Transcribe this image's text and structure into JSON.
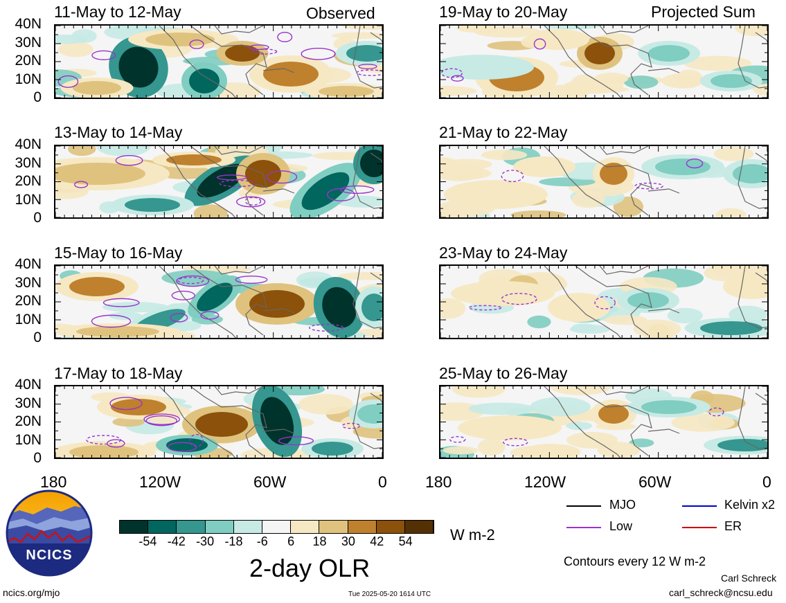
{
  "colors": {
    "bins": [
      "#00332b",
      "#01665e",
      "#35978f",
      "#80cdc1",
      "#c7eae5",
      "#f5f5f5",
      "#f6e8c3",
      "#dfc27d",
      "#bf812d",
      "#8c510a",
      "#543005"
    ],
    "mjo": "#000000",
    "kelvin": "#0000cc",
    "low": "#9933cc",
    "er": "#cc0000",
    "land": "#666666"
  },
  "columns": {
    "left": "Observed",
    "right": "Projected Sum"
  },
  "panels": [
    {
      "title": "11-May to 12-May"
    },
    {
      "title": "13-May to 14-May"
    },
    {
      "title": "15-May to 16-May"
    },
    {
      "title": "17-May to 18-May"
    },
    {
      "title": "19-May to 20-May"
    },
    {
      "title": "21-May to 22-May"
    },
    {
      "title": "23-May to 24-May"
    },
    {
      "title": "25-May to 26-May"
    }
  ],
  "chart_data": {
    "type": "heatmap",
    "title": "2-day OLR",
    "units": "W m-2",
    "lat_ticks": [
      "40N",
      "30N",
      "20N",
      "10N",
      "0"
    ],
    "lon_ticks": [
      "180",
      "120W",
      "60W",
      "0"
    ],
    "colorbar_ticks": [
      "-54",
      "-42",
      "-30",
      "-18",
      "-6",
      "6",
      "18",
      "30",
      "42",
      "54"
    ],
    "contour_interval_note": "Contours every 12 W m-2",
    "legend": [
      "MJO",
      "Kelvin x2",
      "Low",
      "ER"
    ]
  },
  "footer": {
    "logo_text": "NCICS",
    "url": "ncics.org/mjo",
    "timestamp": "Tue 2025-05-20 1614 UTC",
    "author": "Carl Schreck",
    "email": "carl_schreck@ncsu.edu"
  }
}
